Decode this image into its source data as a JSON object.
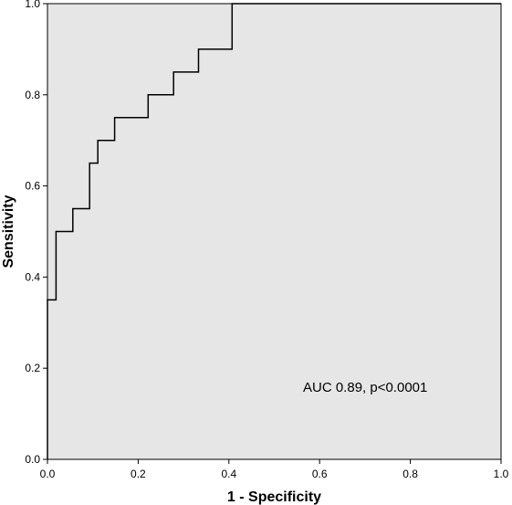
{
  "chart_data": {
    "type": "line",
    "xlabel": "1 - Specificity",
    "ylabel": "Sensitivity",
    "xlim": [
      0,
      1
    ],
    "ylim": [
      0,
      1
    ],
    "x_ticks": [
      "0.0",
      "0.2",
      "0.4",
      "0.6",
      "0.8",
      "1.0"
    ],
    "y_ticks": [
      "0.0",
      "0.2",
      "0.4",
      "0.6",
      "0.8",
      "1.0"
    ],
    "grid": false,
    "background_color": "#e6e6e6",
    "line_color": "#000000",
    "annotation": "AUC 0.89, p<0.0001",
    "series": [
      {
        "step": true,
        "x": [
          0.0,
          0.0,
          0.019,
          0.019,
          0.056,
          0.056,
          0.093,
          0.093,
          0.111,
          0.111,
          0.148,
          0.148,
          0.222,
          0.222,
          0.278,
          0.278,
          0.333,
          0.333,
          0.407,
          0.407,
          1.0
        ],
        "y": [
          0.0,
          0.35,
          0.35,
          0.5,
          0.5,
          0.55,
          0.55,
          0.65,
          0.65,
          0.7,
          0.7,
          0.75,
          0.75,
          0.8,
          0.8,
          0.85,
          0.85,
          0.9,
          0.9,
          1.0,
          1.0
        ]
      }
    ]
  }
}
